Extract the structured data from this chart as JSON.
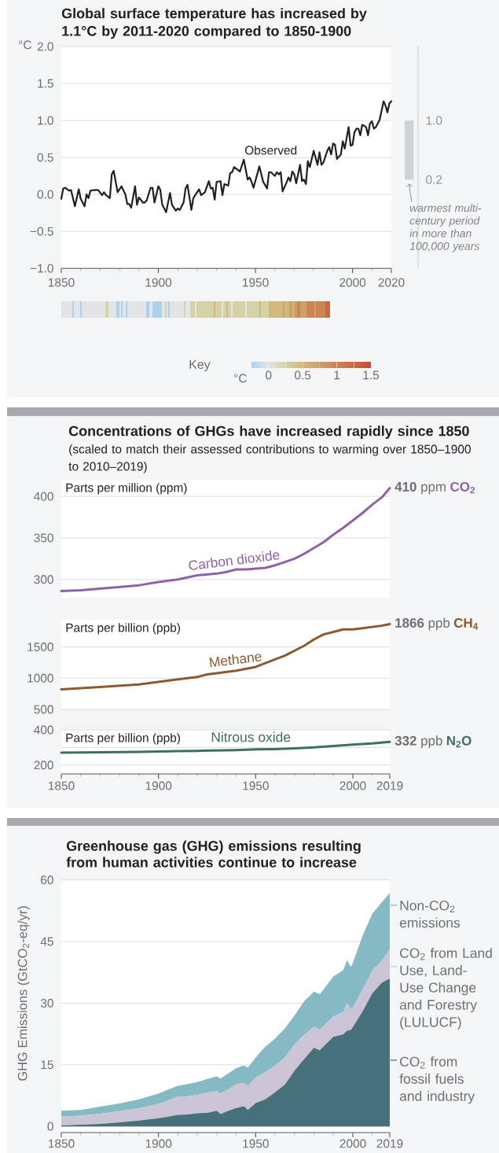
{
  "chart_data": [
    {
      "type": "line",
      "title": "Global surface temperature has increased by 1.1°C by 2011-2020 compared to 1850-1900",
      "ylabel": "°C",
      "xlim": [
        1850,
        2020
      ],
      "xticks": [
        1850,
        {
          "value": 1860,
          "label": null
        },
        {
          "value": 1870,
          "label": null
        },
        {
          "value": 1880,
          "label": null
        },
        {
          "value": 1890,
          "label": null
        },
        1900,
        {
          "value": 1910,
          "label": null
        },
        {
          "value": 1920,
          "label": null
        },
        {
          "value": 1930,
          "label": null
        },
        {
          "value": 1940,
          "label": null
        },
        1950,
        {
          "value": 1960,
          "label": null
        },
        {
          "value": 1970,
          "label": null
        },
        {
          "value": 1980,
          "label": null
        },
        {
          "value": 1990,
          "label": null
        },
        2000,
        {
          "value": 2010,
          "label": null
        },
        2020
      ],
      "ylim": [
        -1,
        2
      ],
      "yticks": [
        {
          "value": -1,
          "label": "−1.0"
        },
        {
          "value": -0.5,
          "label": "−0.5"
        },
        {
          "value": 0,
          "label": "0.0"
        },
        {
          "value": 0.5,
          "label": "0.5"
        },
        {
          "value": 1,
          "label": "1.0"
        },
        {
          "value": 1.5,
          "label": "1.5"
        },
        {
          "value": 2,
          "label": "2.0"
        }
      ],
      "grid": "y",
      "series": [
        {
          "name": "Observed",
          "color": "#231f20",
          "x": [
            1850,
            1851,
            1852,
            1854,
            1855,
            1857,
            1859,
            1860,
            1862,
            1863,
            1864,
            1865,
            1867,
            1869,
            1871,
            1872,
            1873,
            1875,
            1876,
            1877,
            1879,
            1881,
            1883,
            1884,
            1885,
            1886,
            1888,
            1889,
            1890,
            1892,
            1893,
            1894,
            1896,
            1897,
            1898,
            1900,
            1901,
            1902,
            1904,
            1906,
            1907,
            1908,
            1909,
            1910,
            1911,
            1913,
            1914,
            1915,
            1917,
            1918,
            1921,
            1922,
            1924,
            1926,
            1927,
            1928,
            1929,
            1930,
            1932,
            1933,
            1934,
            1936,
            1937,
            1938,
            1939,
            1941,
            1942,
            1944,
            1946,
            1947,
            1948,
            1949,
            1951,
            1952,
            1954,
            1956,
            1957,
            1958,
            1960,
            1961,
            1962,
            1963,
            1964,
            1966,
            1967,
            1968,
            1969,
            1970,
            1971,
            1973,
            1974,
            1975,
            1976,
            1977,
            1978,
            1980,
            1982,
            1983,
            1984,
            1985,
            1987,
            1988,
            1989,
            1990,
            1991,
            1992,
            1994,
            1995,
            1996,
            1998,
            1999,
            2000,
            2001,
            2002,
            2003,
            2004,
            2005,
            2006,
            2007,
            2008,
            2009,
            2010,
            2011,
            2012,
            2014,
            2016,
            2017,
            2018,
            2019,
            2020
          ],
          "values": [
            -0.06,
            0.08,
            0.09,
            0.05,
            0.06,
            -0.16,
            0.07,
            -0.06,
            -0.16,
            0.0,
            -0.05,
            0.05,
            0.06,
            0.06,
            -0.01,
            0.03,
            -0.01,
            -0.05,
            0.27,
            0.32,
            0.03,
            0.11,
            0.0,
            -0.13,
            -0.13,
            -0.18,
            0.11,
            -0.14,
            -0.04,
            -0.11,
            -0.11,
            -0.08,
            0.09,
            0.09,
            -0.11,
            0.11,
            0.06,
            -0.14,
            -0.24,
            0.02,
            -0.14,
            -0.18,
            -0.22,
            -0.19,
            -0.21,
            -0.11,
            0.08,
            0.13,
            -0.21,
            -0.05,
            0.07,
            -0.01,
            0.03,
            0.18,
            0.08,
            0.09,
            -0.07,
            0.17,
            0.18,
            -0.01,
            0.14,
            0.12,
            0.29,
            0.3,
            0.37,
            0.33,
            0.31,
            0.47,
            0.2,
            0.23,
            0.17,
            0.09,
            0.28,
            0.38,
            0.17,
            0.08,
            0.3,
            0.3,
            0.25,
            0.3,
            0.27,
            0.3,
            0.04,
            0.16,
            0.23,
            0.18,
            0.31,
            0.27,
            0.15,
            0.4,
            0.18,
            0.2,
            0.14,
            0.45,
            0.37,
            0.59,
            0.4,
            0.57,
            0.4,
            0.43,
            0.59,
            0.64,
            0.54,
            0.69,
            0.67,
            0.48,
            0.54,
            0.72,
            0.62,
            0.91,
            0.66,
            0.67,
            0.84,
            0.89,
            0.89,
            0.8,
            0.94,
            0.93,
            0.91,
            0.8,
            0.96,
            0.99,
            0.89,
            0.91,
            1.01,
            1.26,
            1.2,
            1.11,
            1.23,
            1.26
          ]
        }
      ]
    },
    {
      "type": "bar",
      "categories": [
        null
      ],
      "values": [
        0.8
      ],
      "base": [
        0.2
      ],
      "color": "#d0d1d3",
      "ylim": [
        -1,
        2
      ],
      "yticks": [
        {
          "value": 0.2,
          "label": "0.2"
        },
        {
          "value": 1.0,
          "label": "1.0"
        }
      ],
      "tick_labels": "y",
      "annotations": [
        "warmest multi-century period in more than 100,000 years"
      ]
    },
    {
      "type": "heatmap",
      "legend_title": "Key",
      "clabel": "°C",
      "tick_labels": false,
      "clim": [
        -0.25,
        1.5
      ],
      "cticks": [
        0,
        0.5,
        1,
        1.5
      ],
      "categories": [
        null,
        null,
        null,
        null,
        null,
        null,
        null,
        null,
        null,
        null,
        null,
        null,
        null,
        null,
        null,
        null,
        null,
        null,
        null,
        null,
        null,
        null,
        null,
        null,
        null,
        null,
        null,
        null,
        null,
        null,
        null,
        null,
        null,
        null,
        null,
        null,
        null,
        null,
        null,
        null,
        null,
        null,
        null,
        null,
        null,
        null,
        null,
        null,
        null,
        null,
        null,
        null,
        null,
        null,
        null,
        null,
        null,
        null,
        null,
        null,
        null,
        null,
        null,
        null,
        null,
        null,
        null,
        null,
        null,
        null,
        null,
        null,
        null,
        null,
        null,
        null,
        null,
        null,
        null,
        null,
        null,
        null,
        null,
        null,
        null,
        null,
        null,
        null,
        null,
        null,
        null,
        null,
        null,
        null,
        null,
        null,
        null,
        null,
        null,
        null,
        null,
        null,
        null,
        null,
        null,
        null,
        null,
        null,
        null,
        null,
        null,
        null,
        null,
        null,
        null,
        null,
        null,
        null,
        null,
        null,
        null,
        null,
        null,
        null,
        null,
        null,
        null,
        null,
        null,
        null,
        null,
        null,
        null,
        null,
        null,
        null,
        null,
        null,
        null,
        null,
        null,
        null,
        null,
        null,
        null,
        null,
        null,
        null,
        null,
        null,
        null,
        null,
        null,
        null,
        null,
        null,
        null,
        null,
        null,
        null,
        null,
        null,
        null,
        null,
        null,
        null,
        null,
        null,
        null,
        null,
        null
      ],
      "y_categories": [
        null
      ],
      "cells": [
        [
          0,
          0,
          0,
          0,
          0,
          0,
          0,
          -0.25,
          0,
          0,
          0,
          0,
          -0.25,
          0,
          0,
          0,
          0,
          0,
          0,
          0,
          0,
          0,
          0,
          0,
          0,
          0,
          0,
          0,
          0.25,
          0.25,
          0,
          0,
          0,
          0,
          0,
          -0.25,
          -0.25,
          0,
          -0.25,
          0,
          0,
          -0.25,
          0,
          0,
          0,
          0,
          0,
          0,
          0,
          0,
          0,
          0,
          0,
          0,
          -0.25,
          -0.25,
          0,
          0,
          -0.25,
          -0.25,
          -0.25,
          -0.25,
          -0.25,
          -0.25,
          0,
          0,
          0.25,
          0,
          -0.25,
          0,
          0,
          0,
          0,
          0,
          0,
          0,
          0,
          0,
          0.25,
          0,
          0,
          0,
          0.25,
          0.25,
          0.25,
          0,
          0.25,
          0.25,
          0.25,
          0.25,
          0.25,
          0.25,
          0.25,
          0.25,
          0.25,
          0.25,
          0.25,
          0.5,
          0.25,
          0.25,
          0.25,
          0.25,
          0,
          0.25,
          0.25,
          0.5,
          0.25,
          0.25,
          0,
          0.25,
          0.25,
          0.25,
          0.25,
          0.25,
          0.25,
          0.25,
          0.25,
          0,
          0.25,
          0.25,
          0.25,
          0.25,
          0.25,
          0.25,
          0.25,
          0.25,
          0.5,
          0.25,
          0.25,
          0.25,
          0.25,
          0.25,
          0.5,
          0.5,
          0.5,
          0.5,
          0.5,
          0.5,
          0.5,
          0.5,
          0.5,
          0.75,
          0.5,
          0.5,
          0.5,
          0.75,
          0.75,
          0.5,
          0.75,
          0.75,
          1,
          1,
          0.75,
          0.75,
          0.75,
          0.75,
          1,
          1,
          1,
          1,
          1,
          0.75,
          1,
          1,
          1,
          1,
          1,
          1,
          1.25,
          1.25,
          1.25
        ]
      ]
    },
    {
      "type": "line",
      "title": "Concentrations of GHGs have increased rapidly since 1850",
      "subtitle": "(scaled to match their assessed contributions to warming over 1850–1900 to 2010–2019)",
      "ylabel": "Parts per million (ppm)",
      "xlim": [
        1850,
        2019
      ],
      "ylim": [
        278,
        420
      ],
      "yticks": [
        300,
        350,
        400
      ],
      "grid": "y",
      "tick_labels": "y",
      "series": [
        {
          "name": "Carbon dioxide",
          "color": "#8e62a8",
          "x": [
            1850,
            1860,
            1870,
            1880,
            1890,
            1900,
            1910,
            1920,
            1930,
            1935,
            1940,
            1945,
            1950,
            1955,
            1960,
            1965,
            1970,
            1975,
            1980,
            1985,
            1990,
            1995,
            2000,
            2005,
            2010,
            2015,
            2019
          ],
          "values": [
            286,
            287,
            289,
            291,
            293,
            297,
            300,
            305,
            307,
            309,
            312,
            312,
            313,
            314,
            317,
            321,
            325,
            331,
            338,
            345,
            354,
            362,
            371,
            380,
            390,
            399,
            410
          ],
          "value_labels": [
            null,
            null,
            null,
            null,
            null,
            null,
            null,
            null,
            null,
            null,
            null,
            null,
            null,
            null,
            null,
            null,
            null,
            null,
            null,
            null,
            null,
            null,
            null,
            null,
            null,
            null,
            "**410** ppm"
          ]
        }
      ],
      "annotations": [
        "CO$_{2}$"
      ]
    },
    {
      "type": "line",
      "ylabel": "Parts per billion (ppb)",
      "xlim": [
        1850,
        2019
      ],
      "ylim": [
        500,
        1935
      ],
      "yticks": [
        500,
        1000,
        1500
      ],
      "grid": "y",
      "tick_labels": "y",
      "series": [
        {
          "name": "Methane",
          "color": "#8b5a2e",
          "x": [
            1850,
            1860,
            1870,
            1880,
            1890,
            1900,
            1910,
            1920,
            1925,
            1930,
            1940,
            1950,
            1955,
            1960,
            1965,
            1970,
            1975,
            1980,
            1985,
            1990,
            1995,
            2000,
            2005,
            2010,
            2015,
            2019
          ],
          "values": [
            820,
            840,
            860,
            880,
            900,
            940,
            980,
            1020,
            1060,
            1080,
            1120,
            1180,
            1240,
            1300,
            1360,
            1440,
            1520,
            1620,
            1700,
            1740,
            1780,
            1780,
            1800,
            1820,
            1840,
            1866
          ],
          "value_labels": [
            null,
            null,
            null,
            null,
            null,
            null,
            null,
            null,
            null,
            null,
            null,
            null,
            null,
            null,
            null,
            null,
            null,
            null,
            null,
            null,
            null,
            null,
            null,
            null,
            null,
            "**1866** ppb"
          ]
        }
      ],
      "annotations": [
        "CH$_{4}$"
      ]
    },
    {
      "type": "line",
      "ylabel": "Parts per billion (ppb)",
      "xlim": [
        1850,
        2019
      ],
      "xticks": [
        1850,
        {
          "value": 1860,
          "label": null
        },
        {
          "value": 1870,
          "label": null
        },
        {
          "value": 1880,
          "label": null
        },
        {
          "value": 1890,
          "label": null
        },
        1900,
        {
          "value": 1910,
          "label": null
        },
        {
          "value": 1920,
          "label": null
        },
        {
          "value": 1930,
          "label": null
        },
        {
          "value": 1940,
          "label": null
        },
        1950,
        {
          "value": 1960,
          "label": null
        },
        {
          "value": 1970,
          "label": null
        },
        {
          "value": 1980,
          "label": null
        },
        {
          "value": 1990,
          "label": null
        },
        2000,
        {
          "value": 2010,
          "label": null
        },
        2019
      ],
      "ylim": [
        150,
        400
      ],
      "yticks": [
        200,
        {
          "value": 300,
          "label": null
        },
        400
      ],
      "grid": "y",
      "series": [
        {
          "name": "Nitrous oxide",
          "color": "#3e6f63",
          "x": [
            1850,
            1860,
            1870,
            1880,
            1890,
            1900,
            1910,
            1920,
            1930,
            1940,
            1950,
            1960,
            1970,
            1980,
            1990,
            2000,
            2010,
            2019
          ],
          "values": [
            271,
            272,
            273,
            274,
            275,
            277,
            279,
            281,
            283,
            285,
            289,
            291,
            295,
            301,
            309,
            316,
            323,
            332
          ],
          "value_labels": [
            null,
            null,
            null,
            null,
            null,
            null,
            null,
            null,
            null,
            null,
            null,
            null,
            null,
            null,
            null,
            null,
            null,
            "**332** ppb"
          ]
        }
      ],
      "annotations": [
        "N$_{2}$O"
      ]
    },
    {
      "type": "area",
      "stacked": true,
      "legend": "right",
      "title": "Greenhouse gas (GHG) emissions resulting from human activities continue to increase",
      "ylabel": "GHG Emissions (GtCO$_{2}$-eq/yr)",
      "xlim": [
        1850,
        2019
      ],
      "xticks": [
        1850,
        {
          "value": 1860,
          "label": null
        },
        {
          "value": 1870,
          "label": null
        },
        {
          "value": 1880,
          "label": null
        },
        {
          "value": 1890,
          "label": null
        },
        1900,
        {
          "value": 1910,
          "label": null
        },
        {
          "value": 1920,
          "label": null
        },
        {
          "value": 1930,
          "label": null
        },
        {
          "value": 1940,
          "label": null
        },
        1950,
        {
          "value": 1960,
          "label": null
        },
        {
          "value": 1970,
          "label": null
        },
        {
          "value": 1980,
          "label": null
        },
        {
          "value": 1990,
          "label": null
        },
        2000,
        {
          "value": 2010,
          "label": null
        },
        2019
      ],
      "ylim": [
        -1.5,
        60
      ],
      "yticks": [
        0,
        15,
        30,
        45,
        60
      ],
      "grid": "y",
      "x": [
        1850,
        1860,
        1870,
        1880,
        1890,
        1900,
        1905,
        1910,
        1915,
        1920,
        1925,
        1930,
        1932,
        1935,
        1940,
        1944,
        1946,
        1950,
        1955,
        1960,
        1965,
        1970,
        1975,
        1980,
        1983,
        1985,
        1990,
        1995,
        1997,
        1999,
        2000,
        2005,
        2010,
        2015,
        2019
      ],
      "series": [
        {
          "name": "CO$_{2}$ from fossil fuels and industry",
          "color": "#47717a",
          "values": [
            0.2,
            0.4,
            0.6,
            1.0,
            1.4,
            2.0,
            2.4,
            2.8,
            2.9,
            3.2,
            3.3,
            3.8,
            3.0,
            3.6,
            4.5,
            4.9,
            4.0,
            5.7,
            6.6,
            8.3,
            10.2,
            13.6,
            16.4,
            19.2,
            18.5,
            19.5,
            21.8,
            22.4,
            23.3,
            23.5,
            24.2,
            28.0,
            32.4,
            35.0,
            36.0
          ]
        },
        {
          "name": "CO$_{2}$ from Land Use, Land-Use Change and Forestry (LULUCF)",
          "color": "#cbc4d4",
          "values": [
            2.2,
            2.2,
            2.5,
            2.7,
            3.0,
            3.5,
            3.9,
            4.4,
            4.4,
            4.5,
            4.9,
            4.8,
            5.0,
            5.2,
            5.7,
            5.7,
            5.8,
            6.2,
            6.6,
            6.5,
            6.6,
            6.3,
            5.9,
            5.1,
            5.0,
            5.0,
            5.0,
            5.4,
            6.7,
            5.1,
            4.8,
            5.2,
            5.6,
            5.4,
            7.0
          ]
        },
        {
          "name": "Non-CO$_{2}$ emissions",
          "color": "#83bac3",
          "values": [
            1.4,
            1.4,
            1.7,
            1.9,
            2.2,
            2.5,
            2.7,
            2.7,
            3.0,
            3.1,
            3.3,
            3.6,
            3.6,
            3.8,
            4.0,
            4.2,
            4.5,
            4.9,
            6.2,
            6.6,
            7.0,
            7.1,
            8.2,
            8.5,
            8.7,
            8.9,
            9.7,
            10.2,
            10.5,
            10.2,
            10.8,
            13.2,
            13.8,
            14.2,
            13.8
          ]
        }
      ]
    }
  ]
}
